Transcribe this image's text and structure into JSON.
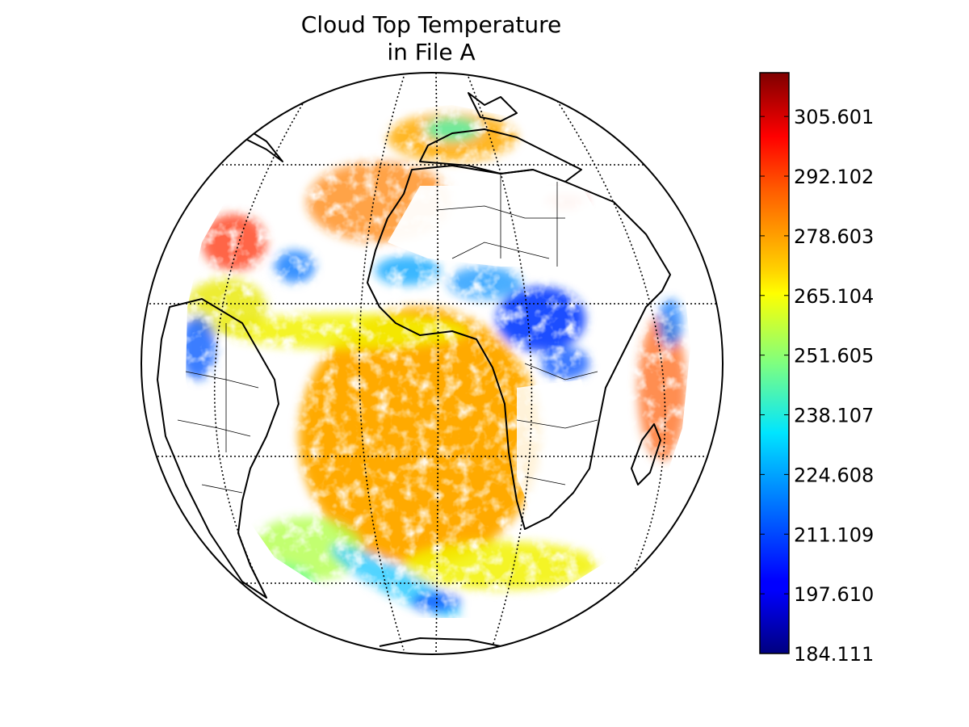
{
  "title_lines": [
    "Cloud Top Temperature",
    "in File A"
  ],
  "colorbar": {
    "min": 184.111,
    "max": 315.5,
    "ticks": [
      "184.111",
      "197.610",
      "211.109",
      "224.608",
      "238.107",
      "251.605",
      "265.104",
      "278.603",
      "292.102",
      "305.601"
    ],
    "colormap": "jet"
  },
  "map": {
    "projection": "orthographic",
    "graticule": "dotted",
    "colors": {
      "land_border": "#000000",
      "no_data": "#ffffff",
      "cold_cloud": "#1a4dff",
      "warm_low_cloud": "#ffaa00",
      "hot": "#ff3300"
    }
  }
}
